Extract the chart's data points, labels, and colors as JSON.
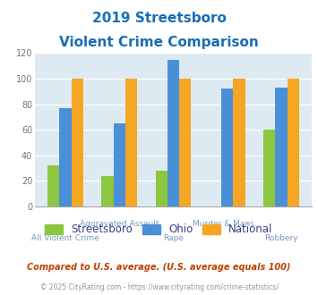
{
  "title_line1": "2019 Streetsboro",
  "title_line2": "Violent Crime Comparison",
  "categories": [
    "All Violent Crime",
    "Aggravated Assault",
    "Rape",
    "Murder & Mans...",
    "Robbery"
  ],
  "streetsboro": [
    32,
    24,
    28,
    0,
    60
  ],
  "ohio": [
    77,
    65,
    115,
    92,
    93
  ],
  "national": [
    100,
    100,
    100,
    100,
    100
  ],
  "color_streetsboro": "#8dc63f",
  "color_ohio": "#4a90d9",
  "color_national": "#f5a623",
  "ylim": [
    0,
    120
  ],
  "yticks": [
    0,
    20,
    40,
    60,
    80,
    100,
    120
  ],
  "background_color": "#ddeaf2",
  "footnote1": "Compared to U.S. average. (U.S. average equals 100)",
  "footnote2": "© 2025 CityRating.com - https://www.cityrating.com/crime-statistics/",
  "title_color": "#1a6db5",
  "footnote1_color": "#c04000",
  "footnote2_color": "#8899aa",
  "legend_text_color": "#334488",
  "xtick_color": "#7799bb",
  "ytick_color": "#777777",
  "grid_color": "#ffffff",
  "bar_width": 0.22
}
